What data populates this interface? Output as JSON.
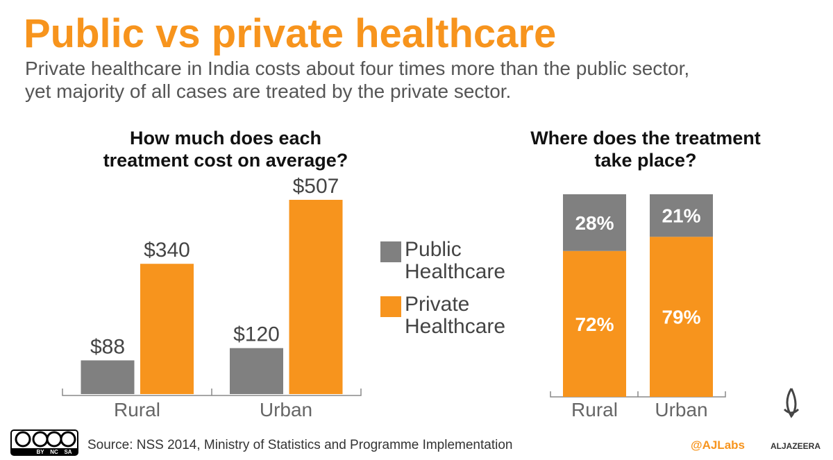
{
  "header": {
    "title": "Public vs private healthcare",
    "subtitle": [
      "Private healthcare in India costs about four times more than the public sector,",
      "yet majority of all cases are treated by the private sector."
    ]
  },
  "chart_data": [
    {
      "type": "bar",
      "title": [
        "How much does each",
        "treatment cost on average?"
      ],
      "categories": [
        "Rural",
        "Urban"
      ],
      "series": [
        {
          "name": "Public Healthcare",
          "color": "#808080",
          "values": [
            88,
            120
          ],
          "value_labels": [
            "$88",
            "$120"
          ]
        },
        {
          "name": "Private Healthcare",
          "color": "#f7941d",
          "values": [
            340,
            507
          ],
          "value_labels": [
            "$340",
            "$507"
          ]
        }
      ]
    },
    {
      "type": "stacked_bar",
      "title": [
        "Where does the treatment",
        "take place?"
      ],
      "categories": [
        "Rural",
        "Urban"
      ],
      "series": [
        {
          "color": "#f7941d",
          "values": [
            72,
            79
          ],
          "value_labels": [
            "72%",
            "79%"
          ]
        },
        {
          "color": "#808080",
          "values": [
            28,
            21
          ],
          "value_labels": [
            "28%",
            "21%"
          ]
        }
      ]
    }
  ],
  "footer": {
    "license": [
      "BY",
      "NC",
      "SA"
    ],
    "source": "Source: NSS 2014, Ministry of Statistics and Programme Implementation",
    "handle": "@AJLabs",
    "logo": "ALJAZEERA"
  }
}
